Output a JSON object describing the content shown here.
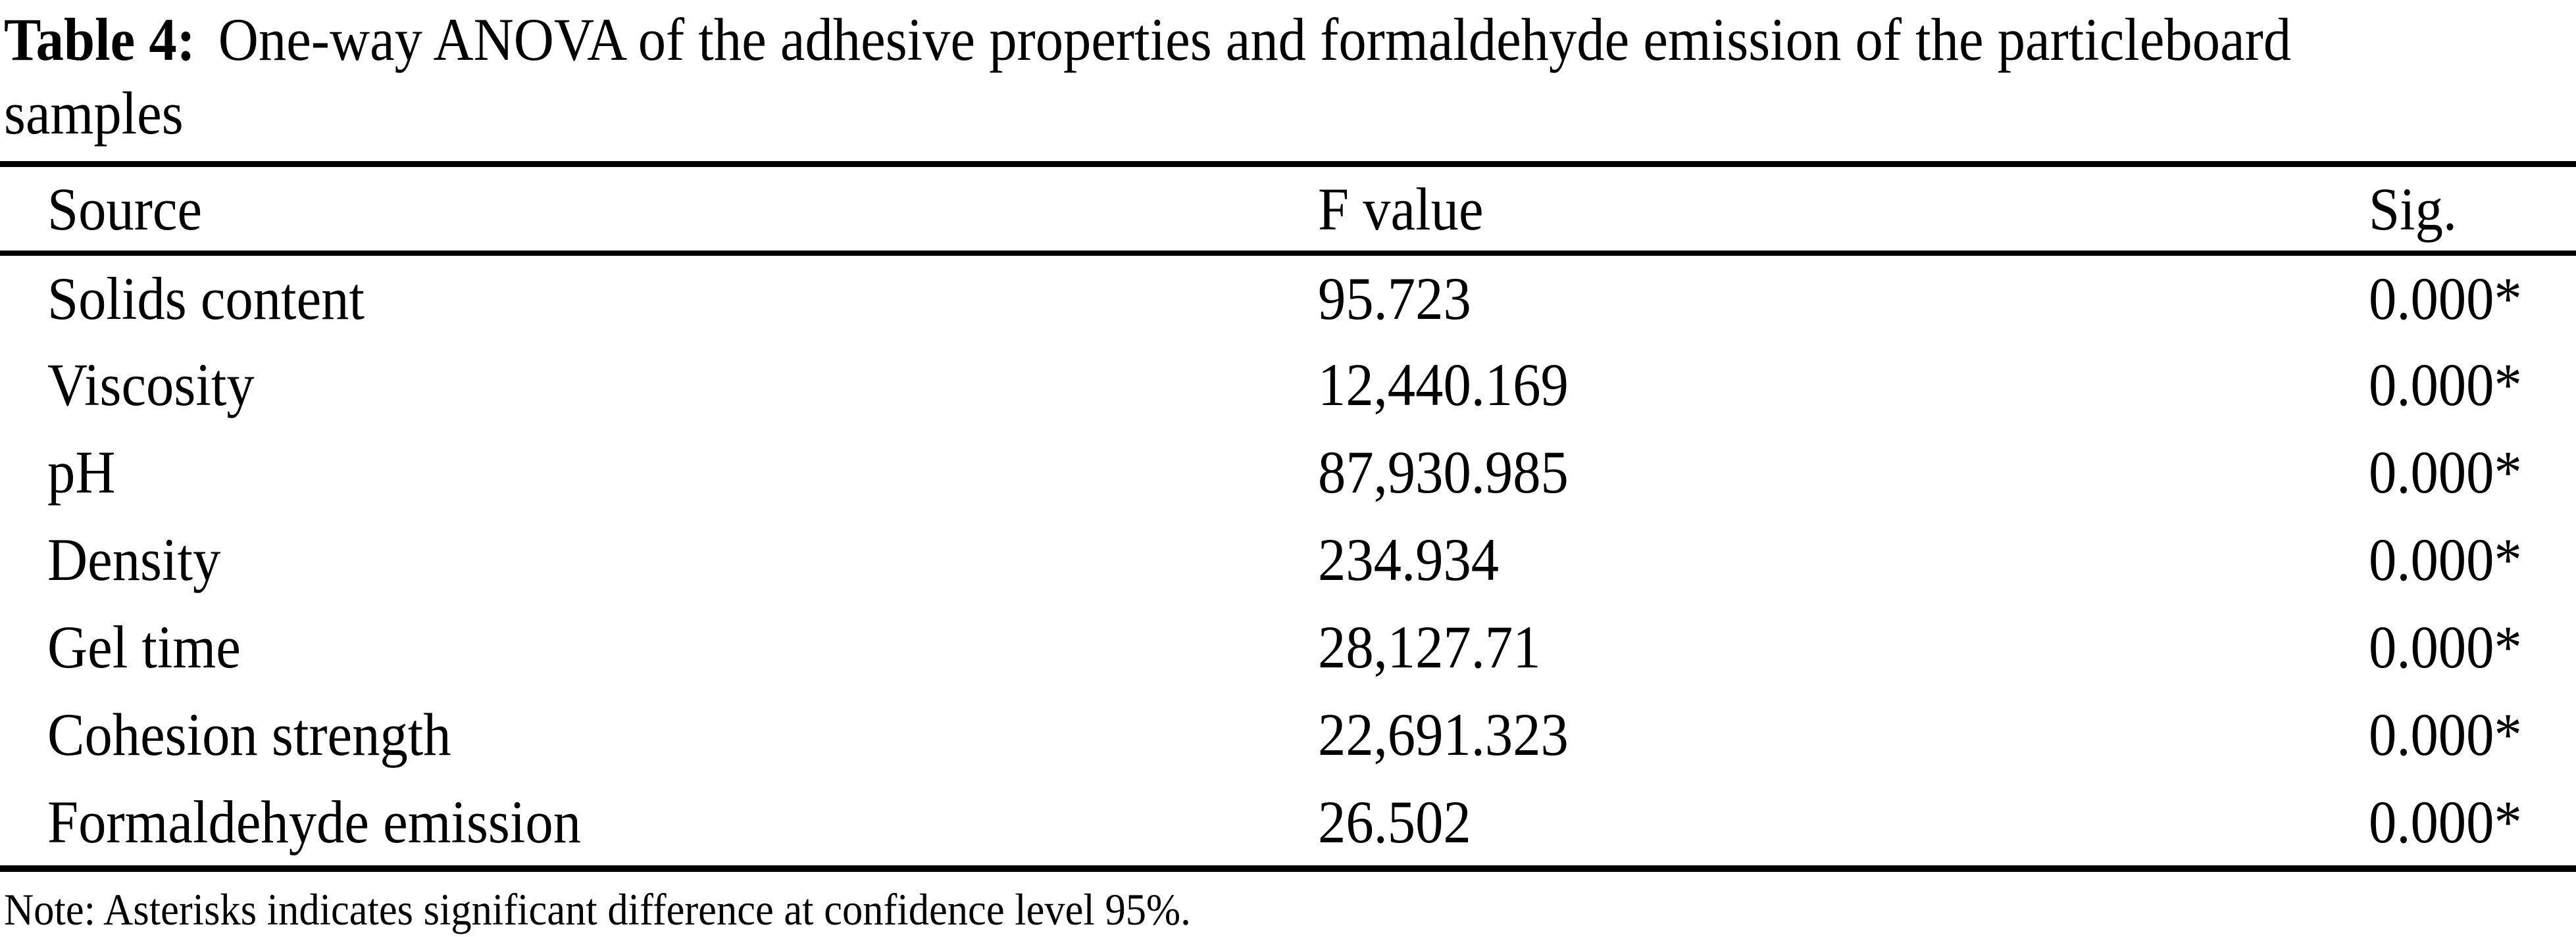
{
  "caption": {
    "label": "Table 4:",
    "line1": "One-way ANOVA of the adhesive properties and formaldehyde emission of the particleboard",
    "line2": "samples"
  },
  "table": {
    "columns": [
      "Source",
      "F value",
      "Sig."
    ],
    "rows": [
      {
        "source": "Solids content",
        "f_value": "95.723",
        "sig": "0.000*"
      },
      {
        "source": "Viscosity",
        "f_value": "12,440.169",
        "sig": "0.000*"
      },
      {
        "source": "pH",
        "f_value": "87,930.985",
        "sig": "0.000*"
      },
      {
        "source": "Density",
        "f_value": "234.934",
        "sig": "0.000*"
      },
      {
        "source": "Gel time",
        "f_value": "28,127.71",
        "sig": "0.000*"
      },
      {
        "source": "Cohesion strength",
        "f_value": "22,691.323",
        "sig": "0.000*"
      },
      {
        "source": "Formaldehyde emission",
        "f_value": "26.502",
        "sig": "0.000*"
      }
    ],
    "note": "Note: Asterisks indicates significant difference at confidence level 95%."
  },
  "colors": {
    "text": "#000000",
    "background": "#ffffff",
    "rule": "#000000"
  }
}
